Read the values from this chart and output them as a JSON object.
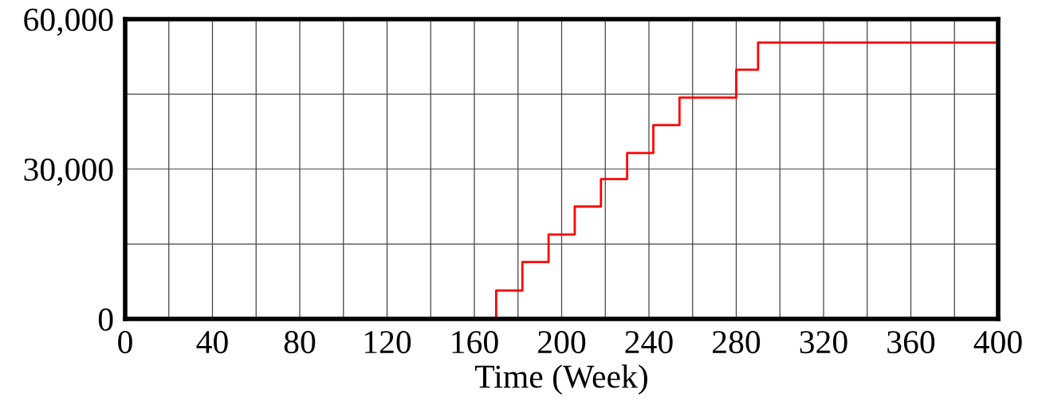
{
  "chart_data": {
    "type": "step",
    "xlabel": "Time (Week)",
    "x": [
      0,
      170,
      182,
      194,
      206,
      218,
      230,
      242,
      254,
      280,
      290,
      400
    ],
    "series": [
      {
        "color": "#ff0000",
        "values": [
          0,
          5700,
          11400,
          16900,
          22500,
          28000,
          33200,
          38800,
          44300,
          49900,
          55300,
          55300
        ]
      }
    ],
    "xlim": [
      0,
      400
    ],
    "xticks": [
      0,
      {
        "value": 20,
        "label": null
      },
      40,
      {
        "value": 60,
        "label": null
      },
      80,
      {
        "value": 100,
        "label": null
      },
      120,
      {
        "value": 140,
        "label": null
      },
      160,
      {
        "value": 180,
        "label": null
      },
      200,
      {
        "value": 220,
        "label": null
      },
      240,
      {
        "value": 260,
        "label": null
      },
      280,
      {
        "value": 300,
        "label": null
      },
      320,
      {
        "value": 340,
        "label": null
      },
      360,
      {
        "value": 380,
        "label": null
      },
      400
    ],
    "ylim": [
      0,
      60000
    ],
    "yticks": [
      {
        "value": 0,
        "label": "0"
      },
      {
        "value": 15000,
        "label": null
      },
      {
        "value": 30000,
        "label": "30,000"
      },
      {
        "value": 45000,
        "label": null
      },
      {
        "value": 60000,
        "label": "60,000"
      }
    ],
    "grid": true
  }
}
